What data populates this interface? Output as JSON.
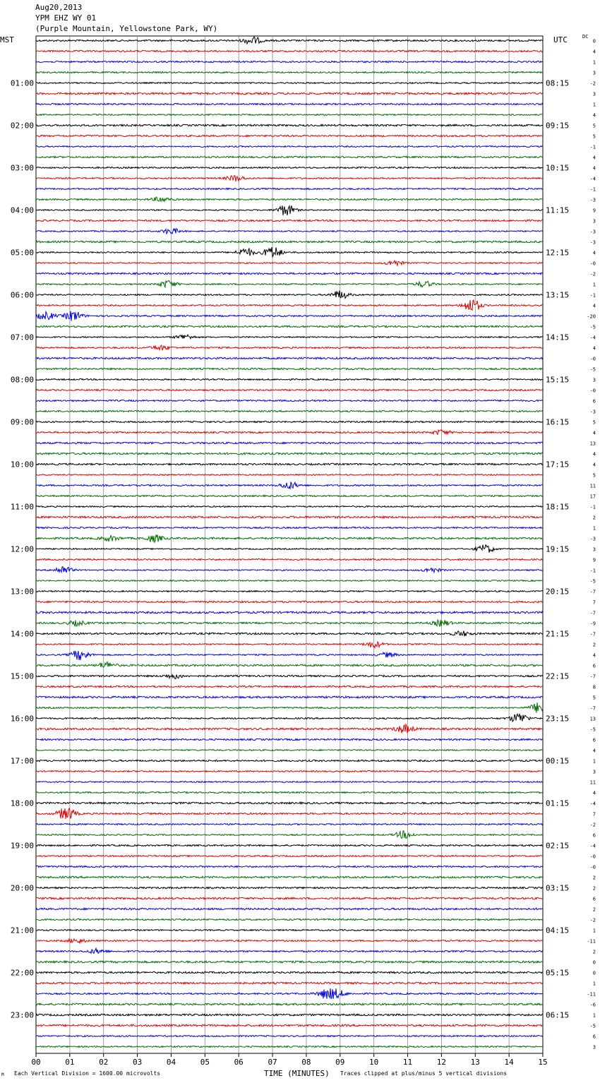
{
  "header": {
    "date": "Aug20,2013",
    "station": "YPM EHZ WY 01",
    "location": "(Purple Mountain, Yellowstone Park, WY)"
  },
  "left_timezone": "MST",
  "right_timezone": "UTC",
  "dc_label": "DC",
  "footer": {
    "corner_mark": "M",
    "scale": "Each Vertical Division = 1600.00 microvolts",
    "clip": "Traces clipped at plus/minus 5 vertical divisions"
  },
  "chart_data": {
    "type": "line",
    "title": "",
    "xlabel": "TIME (MINUTES)",
    "xlim": [
      0,
      15
    ],
    "x_ticks": [
      "00",
      "01",
      "02",
      "03",
      "04",
      "05",
      "06",
      "07",
      "08",
      "09",
      "10",
      "11",
      "12",
      "13",
      "14",
      "15"
    ],
    "trace_colors": [
      "#000000",
      "#e00000",
      "#0000e0",
      "#007000"
    ],
    "rows_per_hour": 4,
    "left_hour_labels": [
      "",
      "01:00",
      "02:00",
      "03:00",
      "04:00",
      "05:00",
      "06:00",
      "07:00",
      "08:00",
      "09:00",
      "10:00",
      "11:00",
      "12:00",
      "13:00",
      "14:00",
      "15:00",
      "16:00",
      "17:00",
      "18:00",
      "19:00",
      "20:00",
      "21:00",
      "22:00",
      "23:00"
    ],
    "right_hour_labels": [
      "",
      "08:15",
      "09:15",
      "10:15",
      "11:15",
      "12:15",
      "13:15",
      "14:15",
      "15:15",
      "16:15",
      "17:15",
      "18:15",
      "19:15",
      "20:15",
      "21:15",
      "22:15",
      "23:15",
      "00:15",
      "01:15",
      "02:15",
      "03:15",
      "04:15",
      "05:15",
      "06:15"
    ],
    "dc_offsets": [
      "0",
      "4",
      "1",
      "3",
      "-2",
      "3",
      "1",
      "4",
      "5",
      "5",
      "-1",
      "4",
      "4",
      "-4",
      "-1",
      "-3",
      "9",
      "3",
      "-3",
      "-3",
      "4",
      "-0",
      "-2",
      "1",
      "-1",
      "4",
      "-20",
      "-5",
      "-4",
      "4",
      "-0",
      "-5",
      "3",
      "-0",
      "6",
      "-3",
      "5",
      "4",
      "13",
      "4",
      "4",
      "5",
      "11",
      "17",
      "-1",
      "2",
      "1",
      "-3",
      "3",
      "9",
      "-1",
      "-5",
      "-7",
      "7",
      "-7",
      "-9",
      "-7",
      "2",
      "4",
      "6",
      "-7",
      "8",
      "5",
      "-7",
      "13",
      "-5",
      "6",
      "4",
      "1",
      "3",
      "11",
      "4",
      "-4",
      "7",
      "-2",
      "6",
      "-4",
      "-0",
      "-0",
      "2",
      "2",
      "6",
      "2",
      "-2",
      "1",
      "-11",
      "2",
      "0",
      "0",
      "1",
      "-11",
      "-6",
      "1",
      "-5",
      "6",
      "3"
    ],
    "events": [
      {
        "row": 0,
        "minute": 6.4,
        "amp": 1.6
      },
      {
        "row": 13,
        "minute": 5.9,
        "amp": 1.3
      },
      {
        "row": 15,
        "minute": 3.7,
        "amp": 1.0
      },
      {
        "row": 16,
        "minute": 7.4,
        "amp": 2.6
      },
      {
        "row": 18,
        "minute": 4.0,
        "amp": 1.3
      },
      {
        "row": 20,
        "minute": 6.2,
        "amp": 1.8
      },
      {
        "row": 20,
        "minute": 7.0,
        "amp": 2.8
      },
      {
        "row": 21,
        "minute": 10.6,
        "amp": 1.2
      },
      {
        "row": 23,
        "minute": 3.9,
        "amp": 1.6
      },
      {
        "row": 23,
        "minute": 11.5,
        "amp": 1.3
      },
      {
        "row": 24,
        "minute": 9.0,
        "amp": 1.8
      },
      {
        "row": 25,
        "minute": 12.9,
        "amp": 3.0
      },
      {
        "row": 26,
        "minute": 1.1,
        "amp": 2.2
      },
      {
        "row": 26,
        "minute": 0.3,
        "amp": 1.6
      },
      {
        "row": 28,
        "minute": 4.4,
        "amp": 1.2
      },
      {
        "row": 29,
        "minute": 3.7,
        "amp": 1.0
      },
      {
        "row": 37,
        "minute": 12.0,
        "amp": 1.0
      },
      {
        "row": 42,
        "minute": 7.5,
        "amp": 1.6
      },
      {
        "row": 47,
        "minute": 3.5,
        "amp": 1.5
      },
      {
        "row": 47,
        "minute": 2.2,
        "amp": 1.1
      },
      {
        "row": 48,
        "minute": 13.3,
        "amp": 1.8
      },
      {
        "row": 50,
        "minute": 0.8,
        "amp": 1.8
      },
      {
        "row": 50,
        "minute": 11.7,
        "amp": 1.0
      },
      {
        "row": 55,
        "minute": 1.2,
        "amp": 1.0
      },
      {
        "row": 55,
        "minute": 12.0,
        "amp": 1.3
      },
      {
        "row": 56,
        "minute": 12.6,
        "amp": 1.0
      },
      {
        "row": 57,
        "minute": 10.0,
        "amp": 1.4
      },
      {
        "row": 58,
        "minute": 1.3,
        "amp": 2.4
      },
      {
        "row": 58,
        "minute": 10.4,
        "amp": 1.0
      },
      {
        "row": 59,
        "minute": 2.1,
        "amp": 1.3
      },
      {
        "row": 60,
        "minute": 4.1,
        "amp": 1.0
      },
      {
        "row": 63,
        "minute": 14.9,
        "amp": 2.4
      },
      {
        "row": 64,
        "minute": 14.3,
        "amp": 2.3
      },
      {
        "row": 65,
        "minute": 10.9,
        "amp": 1.8
      },
      {
        "row": 73,
        "minute": 0.9,
        "amp": 3.0
      },
      {
        "row": 75,
        "minute": 10.9,
        "amp": 1.6
      },
      {
        "row": 85,
        "minute": 1.2,
        "amp": 1.0
      },
      {
        "row": 86,
        "minute": 1.8,
        "amp": 1.0
      },
      {
        "row": 90,
        "minute": 8.6,
        "amp": 2.0
      },
      {
        "row": 90,
        "minute": 8.9,
        "amp": 1.6
      }
    ]
  }
}
